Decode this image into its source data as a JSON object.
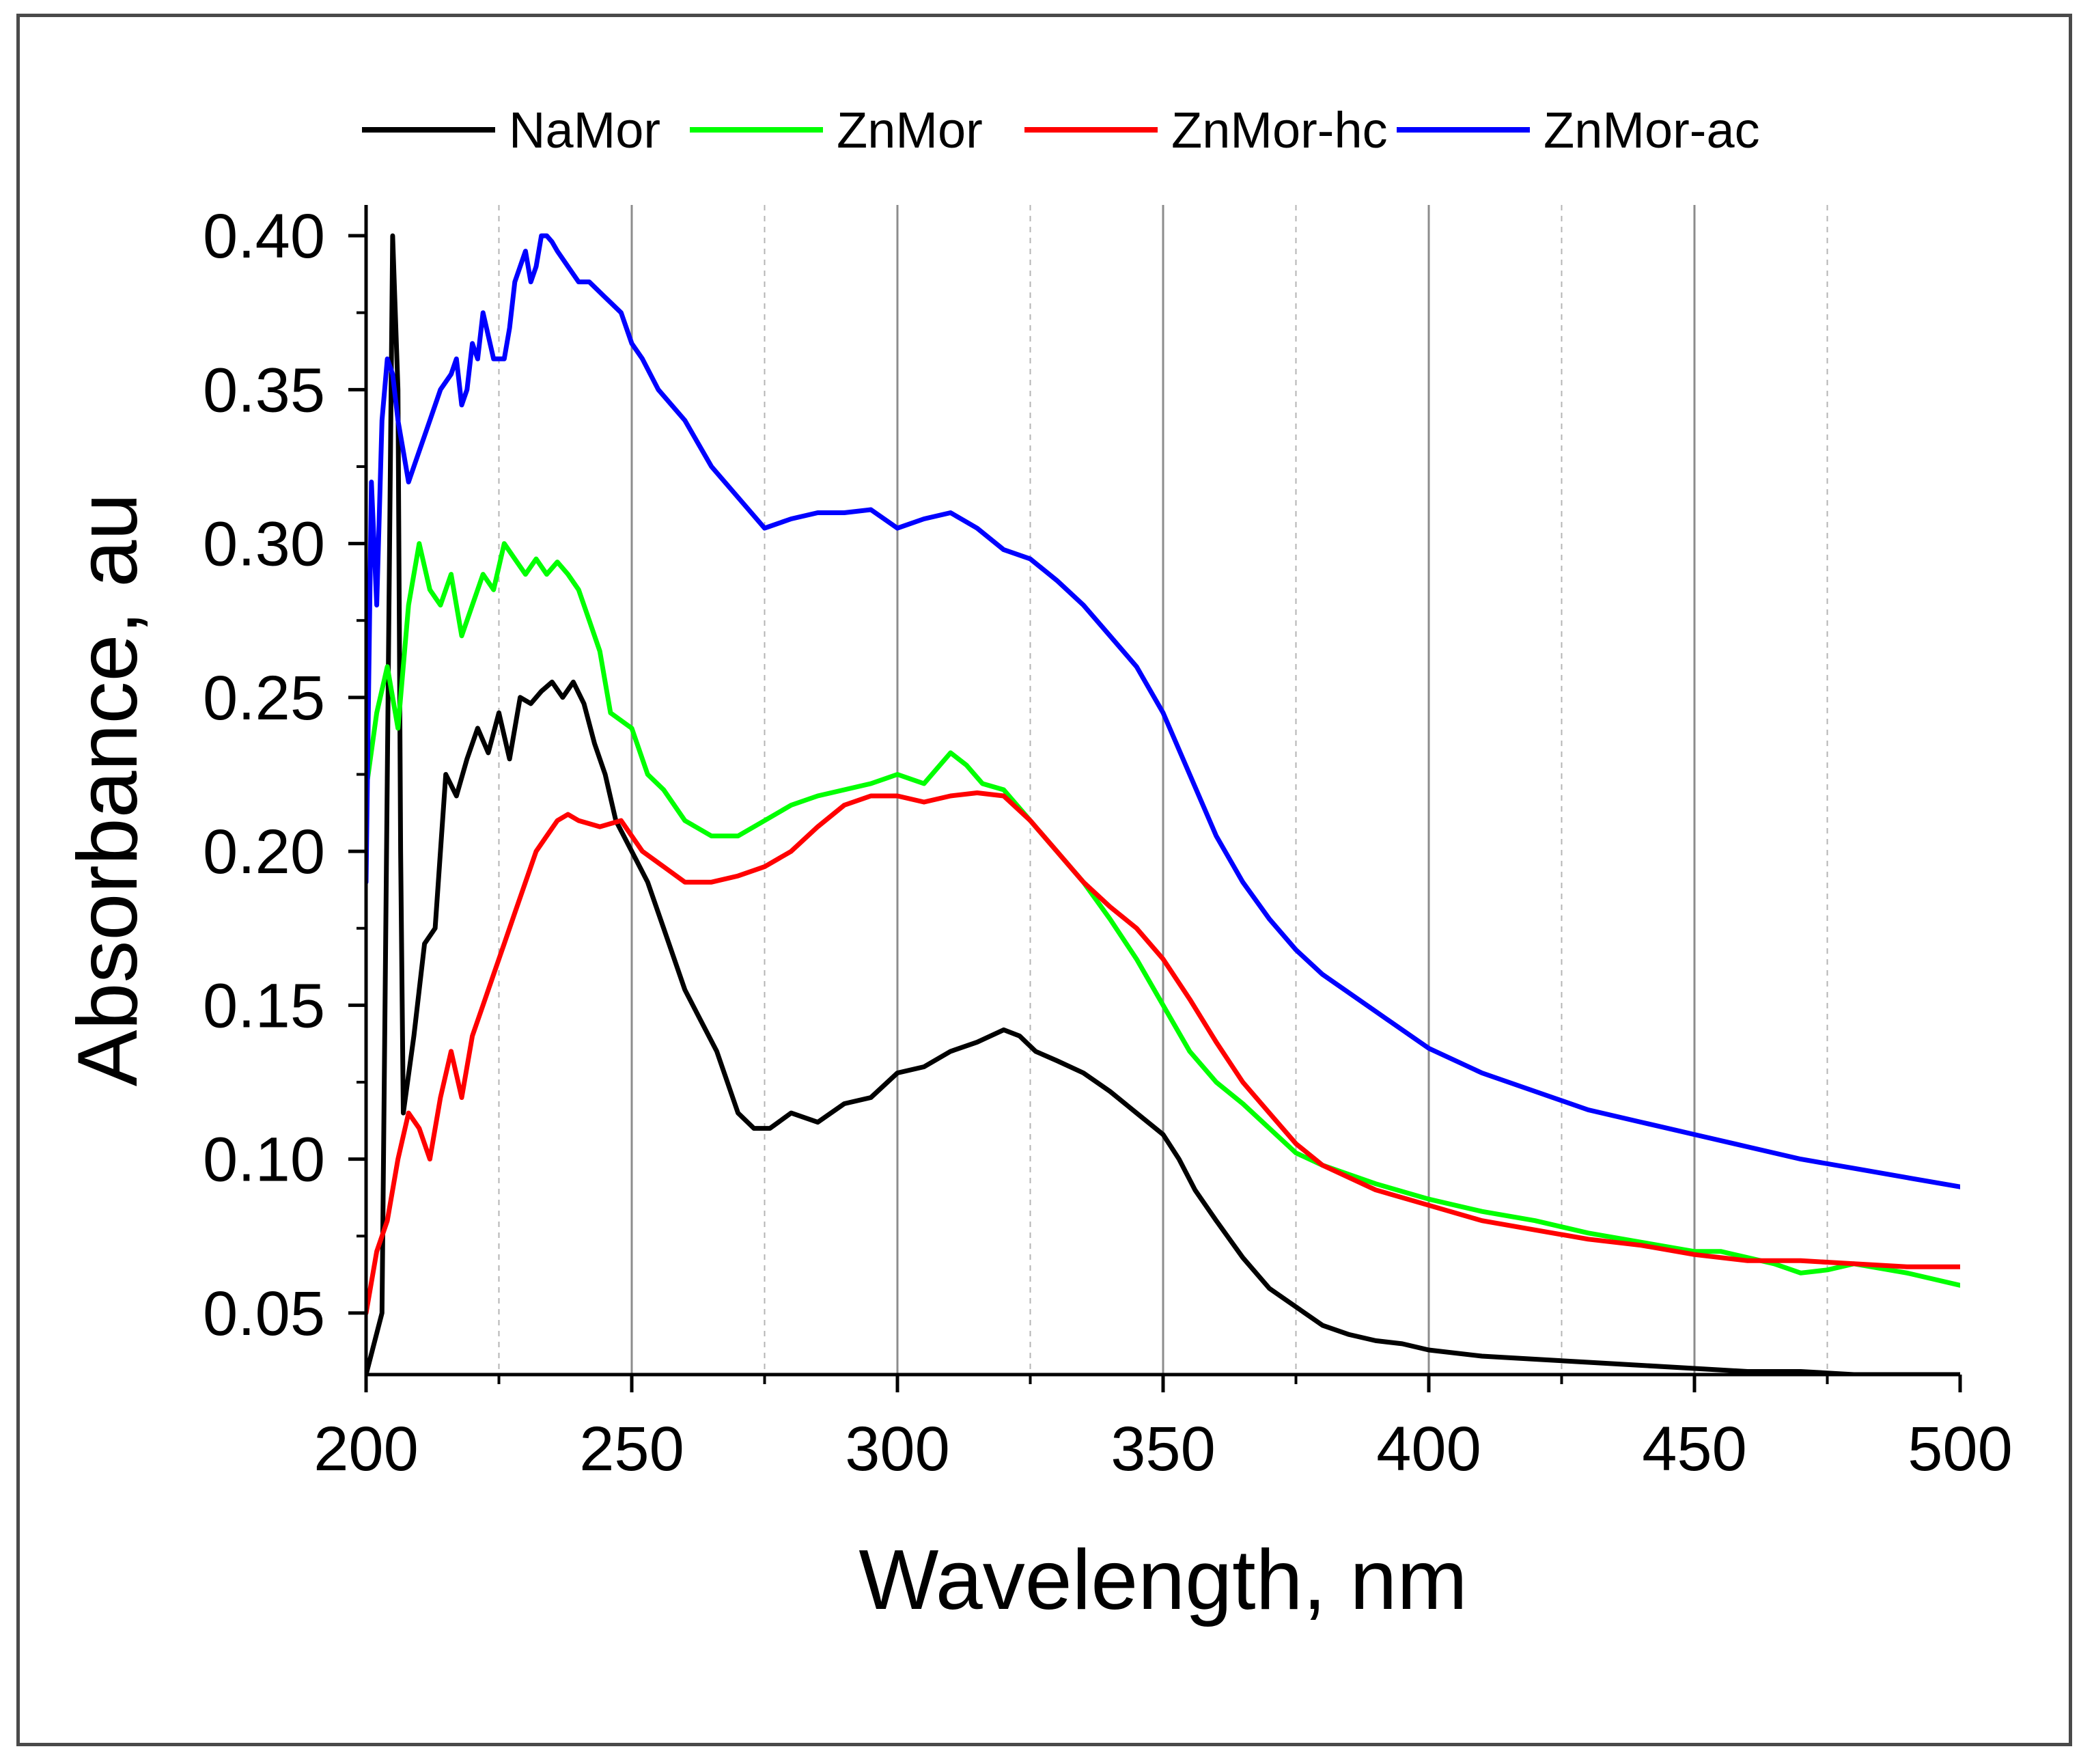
{
  "chart_data": {
    "type": "line",
    "title": "",
    "xlabel": "Wavelength, nm",
    "ylabel": "Absorbance, au",
    "xlim": [
      200,
      500
    ],
    "ylim": [
      0.03,
      0.41
    ],
    "xticks": [
      200,
      250,
      300,
      350,
      400,
      450,
      500
    ],
    "xtick_labels": [
      "200",
      "250",
      "300",
      "350",
      "400",
      "450",
      "500"
    ],
    "yticks": [
      0.05,
      0.1,
      0.15,
      0.2,
      0.25,
      0.3,
      0.35,
      0.4
    ],
    "ytick_labels": [
      "0.05",
      "0.10",
      "0.15",
      "0.20",
      "0.25",
      "0.30",
      "0.35",
      "0.40"
    ],
    "grid": "vertical",
    "legend_position": "top",
    "series": [
      {
        "name": "NaMor",
        "color": "#000000",
        "x": [
          200,
          203,
          205,
          206,
          206.5,
          207,
          209,
          211,
          213,
          215,
          217,
          219,
          221,
          223,
          225,
          227,
          229,
          231,
          233,
          235,
          237,
          239,
          241,
          243,
          245,
          247,
          250,
          253,
          256,
          260,
          263,
          266,
          270,
          273,
          276,
          280,
          285,
          290,
          295,
          300,
          305,
          310,
          315,
          320,
          323,
          326,
          330,
          335,
          340,
          345,
          350,
          353,
          356,
          360,
          365,
          370,
          375,
          380,
          385,
          390,
          395,
          400,
          410,
          420,
          430,
          440,
          450,
          460,
          470,
          480,
          490,
          500
        ],
        "y": [
          0.03,
          0.05,
          0.4,
          0.35,
          0.2,
          0.115,
          0.14,
          0.17,
          0.175,
          0.225,
          0.218,
          0.23,
          0.24,
          0.232,
          0.245,
          0.23,
          0.25,
          0.248,
          0.252,
          0.255,
          0.25,
          0.255,
          0.248,
          0.235,
          0.225,
          0.21,
          0.2,
          0.19,
          0.175,
          0.155,
          0.145,
          0.135,
          0.115,
          0.11,
          0.11,
          0.115,
          0.112,
          0.118,
          0.12,
          0.128,
          0.13,
          0.135,
          0.138,
          0.142,
          0.14,
          0.135,
          0.132,
          0.128,
          0.122,
          0.115,
          0.108,
          0.1,
          0.09,
          0.08,
          0.068,
          0.058,
          0.052,
          0.046,
          0.043,
          0.041,
          0.04,
          0.038,
          0.036,
          0.035,
          0.034,
          0.033,
          0.032,
          0.031,
          0.031,
          0.03,
          0.03,
          0.03
        ]
      },
      {
        "name": "ZnMor",
        "color": "#00ff00",
        "x": [
          200,
          202,
          204,
          206,
          208,
          210,
          212,
          214,
          216,
          218,
          220,
          222,
          224,
          226,
          228,
          230,
          232,
          234,
          236,
          238,
          240,
          242,
          244,
          246,
          250,
          253,
          256,
          260,
          265,
          270,
          275,
          280,
          285,
          290,
          295,
          300,
          305,
          310,
          313,
          316,
          320,
          325,
          330,
          335,
          340,
          345,
          350,
          355,
          360,
          365,
          370,
          375,
          380,
          390,
          400,
          410,
          420,
          430,
          440,
          450,
          455,
          460,
          465,
          470,
          475,
          480,
          490,
          500
        ],
        "y": [
          0.22,
          0.245,
          0.26,
          0.24,
          0.28,
          0.3,
          0.285,
          0.28,
          0.29,
          0.27,
          0.28,
          0.29,
          0.285,
          0.3,
          0.295,
          0.29,
          0.295,
          0.29,
          0.294,
          0.29,
          0.285,
          0.275,
          0.265,
          0.245,
          0.24,
          0.225,
          0.22,
          0.21,
          0.205,
          0.205,
          0.21,
          0.215,
          0.218,
          0.22,
          0.222,
          0.225,
          0.222,
          0.232,
          0.228,
          0.222,
          0.22,
          0.21,
          0.2,
          0.19,
          0.178,
          0.165,
          0.15,
          0.135,
          0.125,
          0.118,
          0.11,
          0.102,
          0.098,
          0.092,
          0.087,
          0.083,
          0.08,
          0.076,
          0.073,
          0.07,
          0.07,
          0.068,
          0.066,
          0.063,
          0.064,
          0.066,
          0.063,
          0.059
        ]
      },
      {
        "name": "ZnMor-hc",
        "color": "#ff0000",
        "x": [
          200,
          202,
          204,
          206,
          208,
          210,
          212,
          214,
          216,
          218,
          220,
          222,
          224,
          226,
          228,
          230,
          232,
          234,
          236,
          238,
          240,
          244,
          248,
          252,
          256,
          260,
          265,
          270,
          275,
          280,
          285,
          290,
          295,
          300,
          305,
          310,
          315,
          320,
          325,
          330,
          335,
          340,
          345,
          350,
          355,
          360,
          365,
          370,
          375,
          380,
          390,
          400,
          410,
          420,
          430,
          440,
          450,
          460,
          470,
          480,
          490,
          500
        ],
        "y": [
          0.05,
          0.07,
          0.08,
          0.1,
          0.115,
          0.11,
          0.1,
          0.12,
          0.135,
          0.12,
          0.14,
          0.15,
          0.16,
          0.17,
          0.18,
          0.19,
          0.2,
          0.205,
          0.21,
          0.212,
          0.21,
          0.208,
          0.21,
          0.2,
          0.195,
          0.19,
          0.19,
          0.192,
          0.195,
          0.2,
          0.208,
          0.215,
          0.218,
          0.218,
          0.216,
          0.218,
          0.219,
          0.218,
          0.21,
          0.2,
          0.19,
          0.182,
          0.175,
          0.165,
          0.152,
          0.138,
          0.125,
          0.115,
          0.105,
          0.098,
          0.09,
          0.085,
          0.08,
          0.077,
          0.074,
          0.072,
          0.069,
          0.067,
          0.067,
          0.066,
          0.065,
          0.065
        ]
      },
      {
        "name": "ZnMor-ac",
        "color": "#0000ff",
        "x": [
          200,
          201,
          202,
          203,
          204,
          205,
          206,
          207,
          208,
          209,
          210,
          212,
          214,
          216,
          217,
          218,
          219,
          220,
          221,
          222,
          224,
          226,
          227,
          228,
          230,
          231,
          232,
          233,
          234,
          235,
          236,
          238,
          240,
          242,
          245,
          248,
          250,
          252,
          255,
          260,
          265,
          270,
          275,
          280,
          285,
          290,
          295,
          300,
          305,
          310,
          315,
          320,
          325,
          330,
          335,
          340,
          345,
          350,
          355,
          360,
          365,
          370,
          375,
          380,
          390,
          400,
          410,
          420,
          430,
          440,
          450,
          460,
          470,
          480,
          490,
          500
        ],
        "y": [
          0.19,
          0.32,
          0.28,
          0.34,
          0.36,
          0.355,
          0.34,
          0.33,
          0.32,
          0.325,
          0.33,
          0.34,
          0.35,
          0.355,
          0.36,
          0.345,
          0.35,
          0.365,
          0.36,
          0.375,
          0.36,
          0.36,
          0.37,
          0.385,
          0.395,
          0.385,
          0.39,
          0.4,
          0.4,
          0.398,
          0.395,
          0.39,
          0.385,
          0.385,
          0.38,
          0.375,
          0.365,
          0.36,
          0.35,
          0.34,
          0.325,
          0.315,
          0.305,
          0.308,
          0.31,
          0.31,
          0.311,
          0.305,
          0.308,
          0.31,
          0.305,
          0.298,
          0.295,
          0.288,
          0.28,
          0.27,
          0.26,
          0.245,
          0.225,
          0.205,
          0.19,
          0.178,
          0.168,
          0.16,
          0.148,
          0.136,
          0.128,
          0.122,
          0.116,
          0.112,
          0.108,
          0.104,
          0.1,
          0.097,
          0.094,
          0.091
        ]
      }
    ]
  }
}
